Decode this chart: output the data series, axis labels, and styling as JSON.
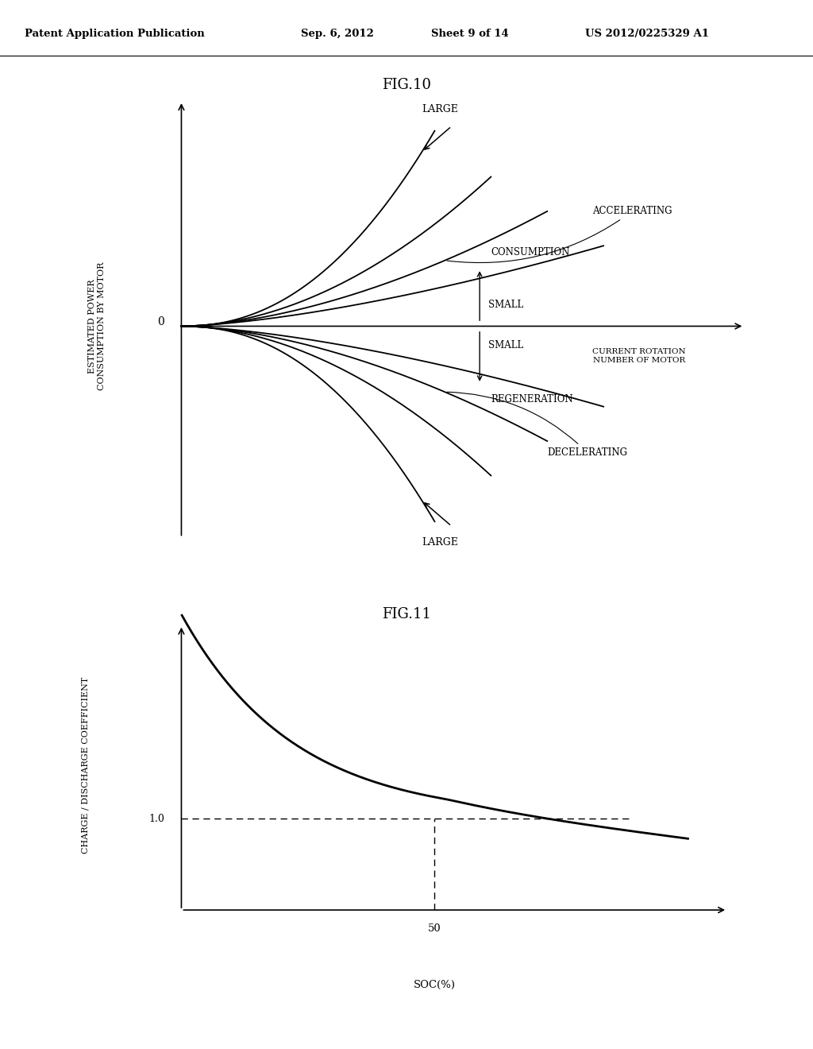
{
  "bg_color": "#ffffff",
  "text_color": "#000000",
  "header_text": "Patent Application Publication",
  "header_date": "Sep. 6, 2012",
  "header_sheet": "Sheet 9 of 14",
  "header_patent": "US 2012/0225329 A1",
  "fig10_title": "FIG.10",
  "fig11_title": "FIG.11",
  "fig10_ylabel": "ESTIMATED POWER\nCONSUMPTION BY MOTOR",
  "fig10_xlabel_arrow": "CURRENT ROTATION\nNUMBER OF MOTOR",
  "fig10_label_large_top": "LARGE",
  "fig10_label_accelerating": "ACCELERATING",
  "fig10_label_consumption": "CONSUMPTION",
  "fig10_label_small_top": "SMALL",
  "fig10_label_small_bottom": "SMALL",
  "fig10_label_regeneration": "REGENERATION",
  "fig10_label_decelerating": "DECELERATING",
  "fig10_label_large_bottom": "LARGE",
  "fig10_label_zero": "0",
  "fig11_ylabel": "CHARGE / DISCHARGE COEFFICIENT",
  "fig11_xlabel": "SOC(%)",
  "fig11_label_50": "50",
  "fig11_label_1": "1.0"
}
